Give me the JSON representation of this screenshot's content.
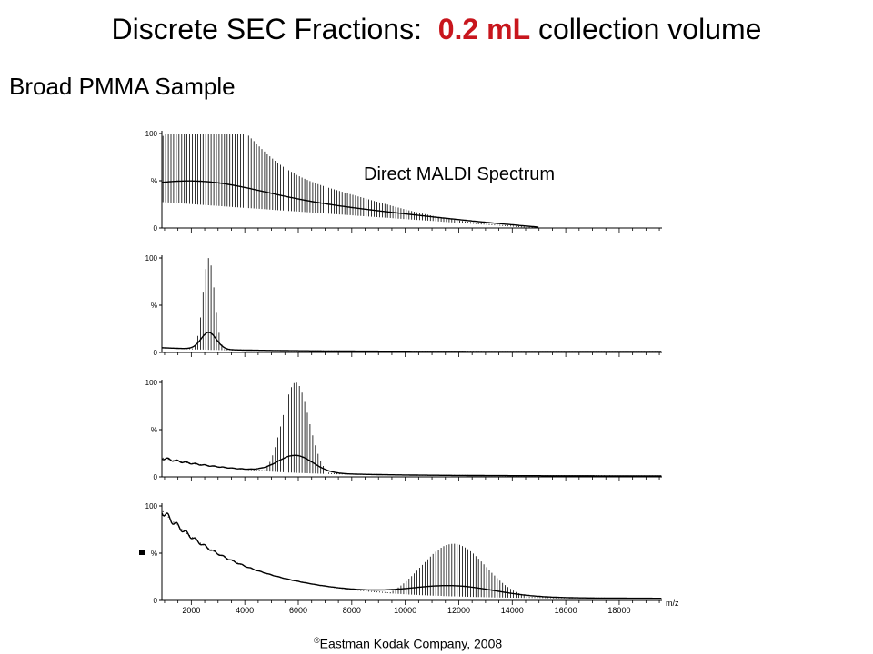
{
  "title_parts": [
    "Discrete SEC Fractions:",
    "0.2 mL",
    "collection volume"
  ],
  "subtitle": "Broad PMMA Sample",
  "copyright": {
    "mark": "®",
    "text": "Eastman Kodak Company, 2008"
  },
  "chart_data": [
    {
      "type": "line",
      "annotation": "Direct MALDI Spectrum",
      "xlim": [
        900,
        19600
      ],
      "ylim": [
        0,
        100
      ],
      "y_ticks": [
        "0",
        "%",
        "100"
      ],
      "peaks": [
        {
          "center": 2200,
          "width": 1800,
          "height": 100
        },
        {
          "center": 5500,
          "width": 3500,
          "height": 45
        }
      ],
      "baseline": {
        "start": 28,
        "end_x": 15000,
        "end": 0
      },
      "series_end": 15000
    },
    {
      "type": "line",
      "xlim": [
        900,
        19600
      ],
      "ylim": [
        0,
        100
      ],
      "y_ticks": [
        "0",
        "%",
        "100"
      ],
      "peaks": [
        {
          "center": 2650,
          "width": 220,
          "height": 100
        }
      ],
      "baseline": {
        "start": 5,
        "end_x": 19600,
        "end": 1
      },
      "series_end": 19600
    },
    {
      "type": "line",
      "xlim": [
        900,
        19600
      ],
      "ylim": [
        0,
        100
      ],
      "y_ticks": [
        "0",
        "%",
        "100"
      ],
      "peaks": [
        {
          "center": 5900,
          "width": 500,
          "height": 100
        }
      ],
      "baseline": {
        "start": 20,
        "end_x": 19600,
        "end": 1
      },
      "series_end": 19600
    },
    {
      "type": "line",
      "xlim": [
        900,
        19600
      ],
      "ylim": [
        0,
        100
      ],
      "y_ticks": [
        "0",
        "%",
        "100"
      ],
      "xlabel": "m/z",
      "x_ticks": [
        2000,
        4000,
        6000,
        8000,
        10000,
        12000,
        14000,
        16000,
        18000
      ],
      "peaks": [
        {
          "center": 11800,
          "width": 1200,
          "height": 60
        }
      ],
      "baseline": {
        "start": 95,
        "end_x": 19600,
        "end": 2
      },
      "series_end": 19600
    }
  ]
}
